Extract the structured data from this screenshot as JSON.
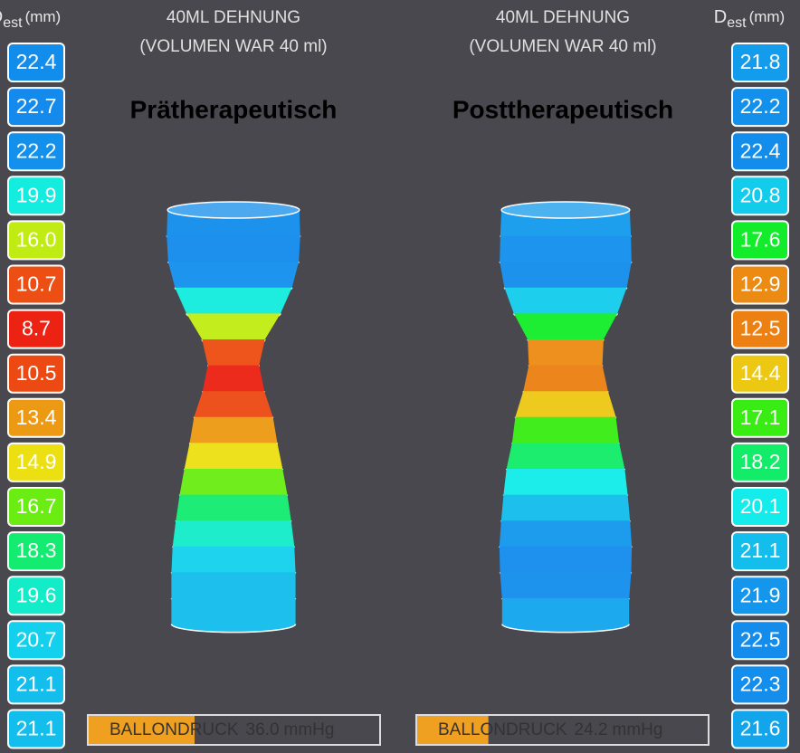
{
  "columns": [
    {
      "header": {
        "symbol": "D",
        "subscript": "est",
        "unit": "(mm)"
      },
      "diameters": [
        "22.4",
        "22.7",
        "22.2",
        "19.9",
        "16.0",
        "10.7",
        "8.7",
        "10.5",
        "13.4",
        "14.9",
        "16.7",
        "18.3",
        "19.6",
        "20.7",
        "21.1",
        "21.1"
      ]
    },
    {
      "header": {
        "symbol": "D",
        "subscript": "est",
        "unit": "(mm)"
      },
      "diameters": [
        "21.8",
        "22.2",
        "22.4",
        "20.8",
        "17.6",
        "12.9",
        "12.5",
        "14.4",
        "17.1",
        "18.2",
        "20.1",
        "21.1",
        "21.9",
        "22.5",
        "22.3",
        "21.6"
      ]
    }
  ],
  "panels": [
    {
      "title": "40ML DEHNUNG",
      "subtitle": "(VOLUMEN WAR 40 ml)",
      "label": "Prätherapeutisch",
      "pressure": {
        "label": "BALLONDRUCK",
        "value": "36.0",
        "unit": "mmHg"
      }
    },
    {
      "title": "40ML DEHNUNG",
      "subtitle": "(VOLUMEN WAR 40 ml)",
      "label": "Posttherapeutisch",
      "pressure": {
        "label": "BALLONDRUCK",
        "value": "24.2",
        "unit": "mmHg"
      }
    }
  ]
}
